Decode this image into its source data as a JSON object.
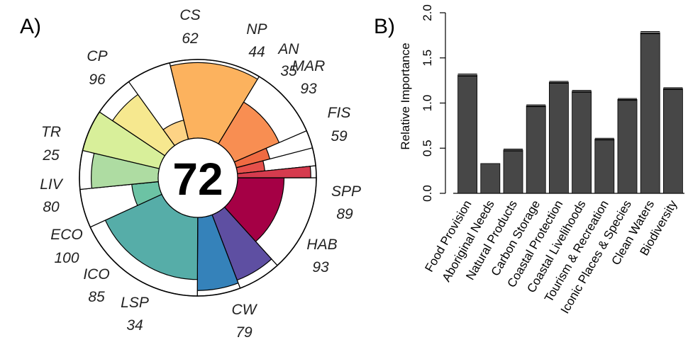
{
  "panels": {
    "a_label": "A)",
    "b_label": "B)"
  },
  "chart_data": [
    {
      "type": "pie",
      "subtype": "flower",
      "center_score": "72",
      "max_score": 100,
      "goals": [
        {
          "code": "FIS",
          "score": "59",
          "value": 59,
          "weight": 1.31,
          "color": "#a50045"
        },
        {
          "code": "SPP",
          "score": "89",
          "value": 89,
          "weight": 0.58,
          "color": "#5e4fa2"
        },
        {
          "code": "HAB",
          "score": "93",
          "value": 93,
          "weight": 0.58,
          "color": "#3582ba"
        },
        {
          "code": "CW",
          "score": "79",
          "value": 79,
          "weight": 1.78,
          "color": "#56ada8"
        },
        {
          "code": "LSP",
          "score": "34",
          "value": 34,
          "weight": 0.52,
          "color": "#6cc3a4"
        },
        {
          "code": "ICO",
          "score": "85",
          "value": 85,
          "weight": 0.52,
          "color": "#aedca2"
        },
        {
          "code": "ECO",
          "score": "100",
          "value": 100,
          "weight": 0.56,
          "color": "#d8ef9a"
        },
        {
          "code": "LIV",
          "score": "80",
          "value": 80,
          "weight": 0.56,
          "color": "#f6e88f"
        },
        {
          "code": "TR",
          "score": "25",
          "value": 25,
          "weight": 0.6,
          "color": "#fdd385"
        },
        {
          "code": "CP",
          "score": "96",
          "value": 96,
          "weight": 1.23,
          "color": "#fcb25e"
        },
        {
          "code": "CS",
          "score": "62",
          "value": 62,
          "weight": 0.97,
          "color": "#f88e52"
        },
        {
          "code": "NP",
          "score": "44",
          "value": 44,
          "weight": 0.24,
          "color": "#ef6b42"
        },
        {
          "code": "AN",
          "score": "35",
          "value": 35,
          "weight": 0.24,
          "color": "#e5504b"
        },
        {
          "code": "MAR",
          "score": "93",
          "value": 93,
          "weight": 0.16,
          "color": "#d63b4e"
        }
      ]
    },
    {
      "type": "bar",
      "categories": [
        "Food Provision",
        "Aboriginal Needs",
        "Natural Products",
        "Carbon Storage",
        "Coastal Protection",
        "Coastal Livelihoods",
        "Tourism & Recreation",
        "Iconic Places & Species",
        "Clean Waters",
        "Biodiversity"
      ],
      "values": [
        1.31,
        0.33,
        0.48,
        0.97,
        1.23,
        1.13,
        0.6,
        1.04,
        1.78,
        1.16
      ],
      "errors": [
        0.012,
        0.0,
        0.01,
        0.01,
        0.01,
        0.01,
        0.01,
        0.01,
        0.012,
        0.01
      ],
      "ylabel": "Relative Importance",
      "ylim": [
        0,
        2.0
      ],
      "yticks": [
        "0.0",
        "0.5",
        "1.0",
        "1.5",
        "2.0"
      ],
      "ytick_values": [
        0,
        0.5,
        1.0,
        1.5,
        2.0
      ],
      "bar_color": "#474747",
      "grid": false
    }
  ]
}
